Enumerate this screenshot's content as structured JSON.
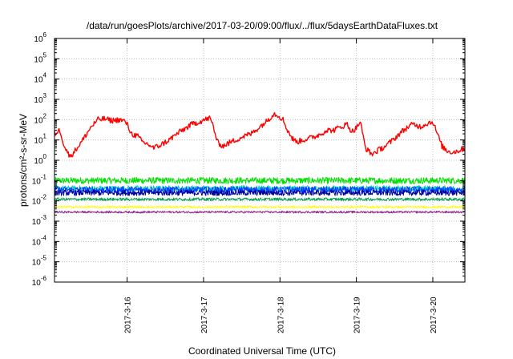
{
  "chart_data": {
    "type": "line",
    "title": "/data/run/goesPlots/archive/2017-03-20/09:00/flux/../flux/5daysEarthDataFluxes.txt",
    "xlabel": "Coordinated Universal Time (UTC)",
    "ylabel": "protons/cm²-s-sr-MeV",
    "yscale": "log",
    "ylim": [
      1e-06,
      1000000.0
    ],
    "xlim": [
      15.05,
      20.42
    ],
    "grid": true,
    "y_ticks": [
      {
        "value": 1e-06,
        "base": "10",
        "exp": "-6"
      },
      {
        "value": 1e-05,
        "base": "10",
        "exp": "-5"
      },
      {
        "value": 0.0001,
        "base": "10",
        "exp": "-4"
      },
      {
        "value": 0.001,
        "base": "10",
        "exp": "-3"
      },
      {
        "value": 0.01,
        "base": "10",
        "exp": "-2"
      },
      {
        "value": 0.1,
        "base": "10",
        "exp": "-1"
      },
      {
        "value": 1,
        "base": "10",
        "exp": "0"
      },
      {
        "value": 10,
        "base": "10",
        "exp": "1"
      },
      {
        "value": 100,
        "base": "10",
        "exp": "2"
      },
      {
        "value": 1000,
        "base": "10",
        "exp": "3"
      },
      {
        "value": 10000,
        "base": "10",
        "exp": "4"
      },
      {
        "value": 100000,
        "base": "10",
        "exp": "5"
      },
      {
        "value": 1000000,
        "base": "10",
        "exp": "6"
      }
    ],
    "x_ticks": [
      {
        "x": 16,
        "label": "2017-3-16"
      },
      {
        "x": 17,
        "label": "2017-3-17"
      },
      {
        "x": 18,
        "label": "2017-3-18"
      },
      {
        "x": 19,
        "label": "2017-3-19"
      },
      {
        "x": 20,
        "label": "2017-3-20"
      }
    ],
    "series": [
      {
        "color": "#ff0000",
        "noise": 0.14,
        "step": 0.01,
        "anchors": [
          [
            15.05,
            20
          ],
          [
            15.12,
            30
          ],
          [
            15.18,
            5
          ],
          [
            15.25,
            1.5
          ],
          [
            15.32,
            3
          ],
          [
            15.42,
            10
          ],
          [
            15.52,
            40
          ],
          [
            15.62,
            100
          ],
          [
            15.7,
            110
          ],
          [
            15.8,
            90
          ],
          [
            15.9,
            100
          ],
          [
            15.98,
            80
          ],
          [
            16.06,
            20
          ],
          [
            16.14,
            15
          ],
          [
            16.2,
            8
          ],
          [
            16.28,
            6
          ],
          [
            16.35,
            4
          ],
          [
            16.45,
            6
          ],
          [
            16.55,
            10
          ],
          [
            16.65,
            20
          ],
          [
            16.75,
            35
          ],
          [
            16.85,
            60
          ],
          [
            16.95,
            80
          ],
          [
            17.02,
            100
          ],
          [
            17.08,
            120
          ],
          [
            17.12,
            60
          ],
          [
            17.18,
            8
          ],
          [
            17.25,
            5
          ],
          [
            17.33,
            7
          ],
          [
            17.42,
            10
          ],
          [
            17.52,
            15
          ],
          [
            17.62,
            20
          ],
          [
            17.72,
            40
          ],
          [
            17.82,
            80
          ],
          [
            17.92,
            200
          ],
          [
            17.98,
            160
          ],
          [
            18.04,
            100
          ],
          [
            18.1,
            30
          ],
          [
            18.16,
            12
          ],
          [
            18.22,
            8
          ],
          [
            18.3,
            10
          ],
          [
            18.38,
            12
          ],
          [
            18.46,
            15
          ],
          [
            18.54,
            20
          ],
          [
            18.6,
            30
          ],
          [
            18.7,
            30
          ],
          [
            18.8,
            45
          ],
          [
            18.88,
            60
          ],
          [
            18.94,
            25
          ],
          [
            19.0,
            40
          ],
          [
            19.05,
            80
          ],
          [
            19.12,
            4
          ],
          [
            19.2,
            2
          ],
          [
            19.28,
            3
          ],
          [
            19.38,
            5
          ],
          [
            19.48,
            10
          ],
          [
            19.56,
            20
          ],
          [
            19.66,
            40
          ],
          [
            19.74,
            60
          ],
          [
            19.84,
            45
          ],
          [
            19.92,
            65
          ],
          [
            20.0,
            80
          ],
          [
            20.06,
            20
          ],
          [
            20.12,
            5
          ],
          [
            20.18,
            3
          ],
          [
            20.26,
            2.5
          ],
          [
            20.34,
            3
          ],
          [
            20.42,
            4
          ]
        ]
      },
      {
        "color": "#00e000",
        "level": 0.1,
        "noise": 0.16,
        "step": 0.006
      },
      {
        "color": "#00c8c8",
        "level": 0.04,
        "noise": 0.15,
        "step": 0.006
      },
      {
        "color": "#0040ff",
        "level": 0.035,
        "noise": 0.16,
        "step": 0.006
      },
      {
        "color": "#0000a0",
        "level": 0.025,
        "noise": 0.14,
        "step": 0.006
      },
      {
        "color": "#00a050",
        "level": 0.012,
        "noise": 0.07,
        "step": 0.006
      },
      {
        "color": "#ffff00",
        "level": 0.005,
        "noise": 0.05,
        "step": 0.006
      },
      {
        "color": "#8a2a8a",
        "level": 0.0028,
        "noise": 0.05,
        "step": 0.006
      }
    ]
  }
}
